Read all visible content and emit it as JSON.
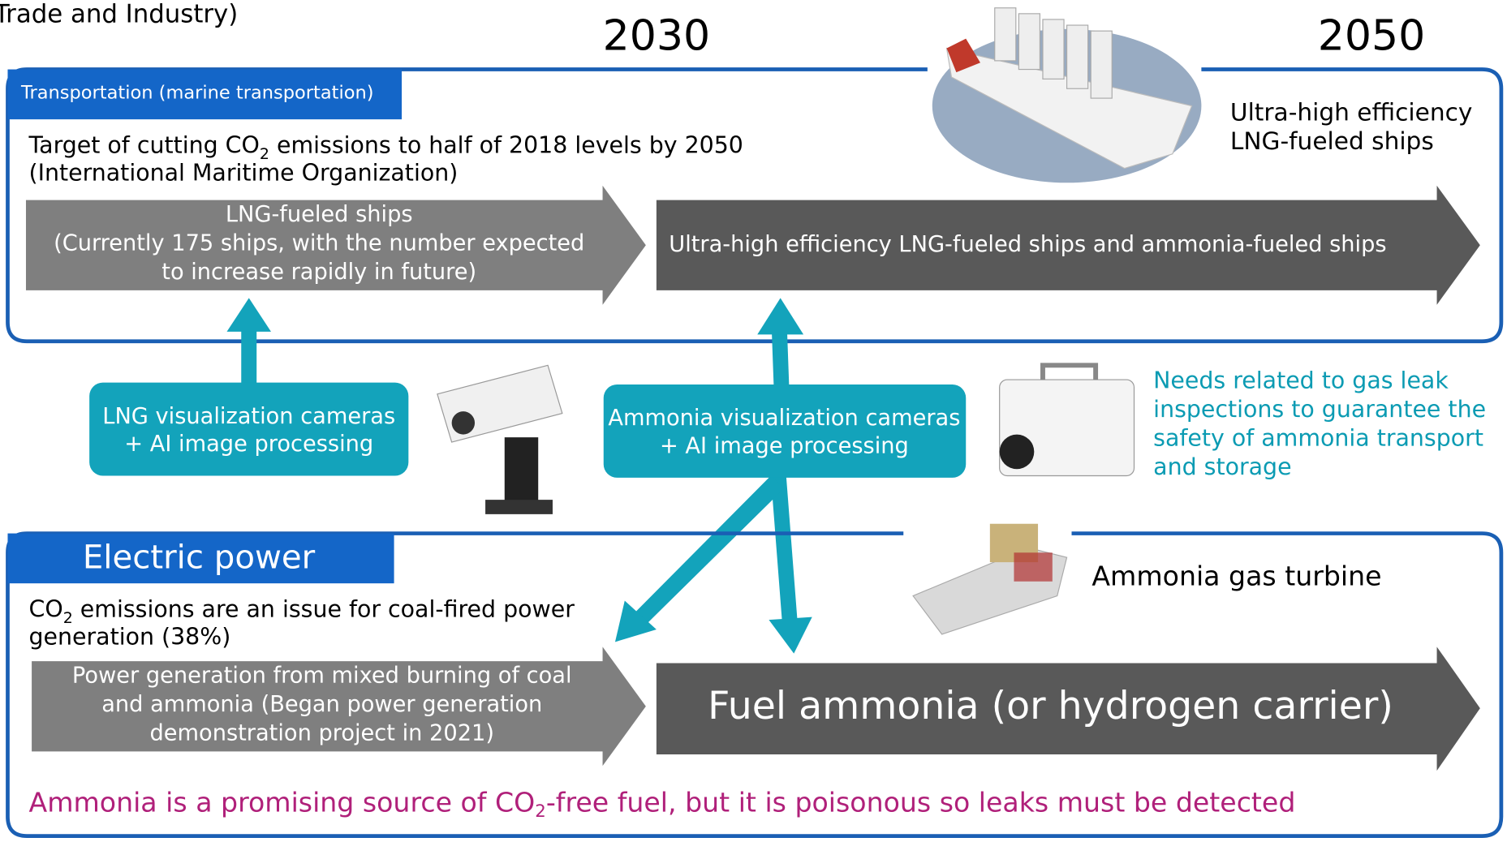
{
  "header": {
    "title": "Trade and Industry)",
    "years": [
      "2030",
      "2050"
    ]
  },
  "transport": {
    "tag": "Transportation (marine transportation)",
    "target": {
      "parts": [
        "Target of cutting CO",
        "2",
        " emissions to half of 2018 levels by 2050"
      ],
      "line2": "(International Maritime Organization)"
    },
    "arrow_2030": [
      "LNG-fueled ships",
      "(Currently 175 ships, with the number expected",
      "to increase rapidly in future)"
    ],
    "arrow_2050": "Ultra-high efficiency LNG-fueled ships and ammonia-fueled ships",
    "ship_label": [
      "Ultra-high efficiency",
      "LNG-fueled ships"
    ]
  },
  "cameras": {
    "lng": [
      "LNG visualization cameras",
      "+ AI image processing"
    ],
    "ammonia": [
      "Ammonia visualization cameras",
      "+ AI image processing"
    ],
    "needs": [
      "Needs related to gas leak",
      "inspections to guarantee the",
      "safety of ammonia transport",
      "and storage"
    ]
  },
  "power": {
    "tag": "Electric power",
    "issue": {
      "parts": [
        "CO",
        "2",
        " emissions are an issue for coal-fired power"
      ],
      "line2": "generation (38%)"
    },
    "arrow_2030": [
      "Power generation from mixed burning of coal",
      "and ammonia (Began power generation",
      "demonstration project in 2021)"
    ],
    "arrow_2050": "Fuel ammonia (or hydrogen carrier)",
    "turbine_label": "Ammonia gas turbine",
    "footer": {
      "parts": [
        "Ammonia is a promising source of CO",
        "2",
        "-free fuel, but it is poisonous so leaks must be detected"
      ]
    }
  }
}
